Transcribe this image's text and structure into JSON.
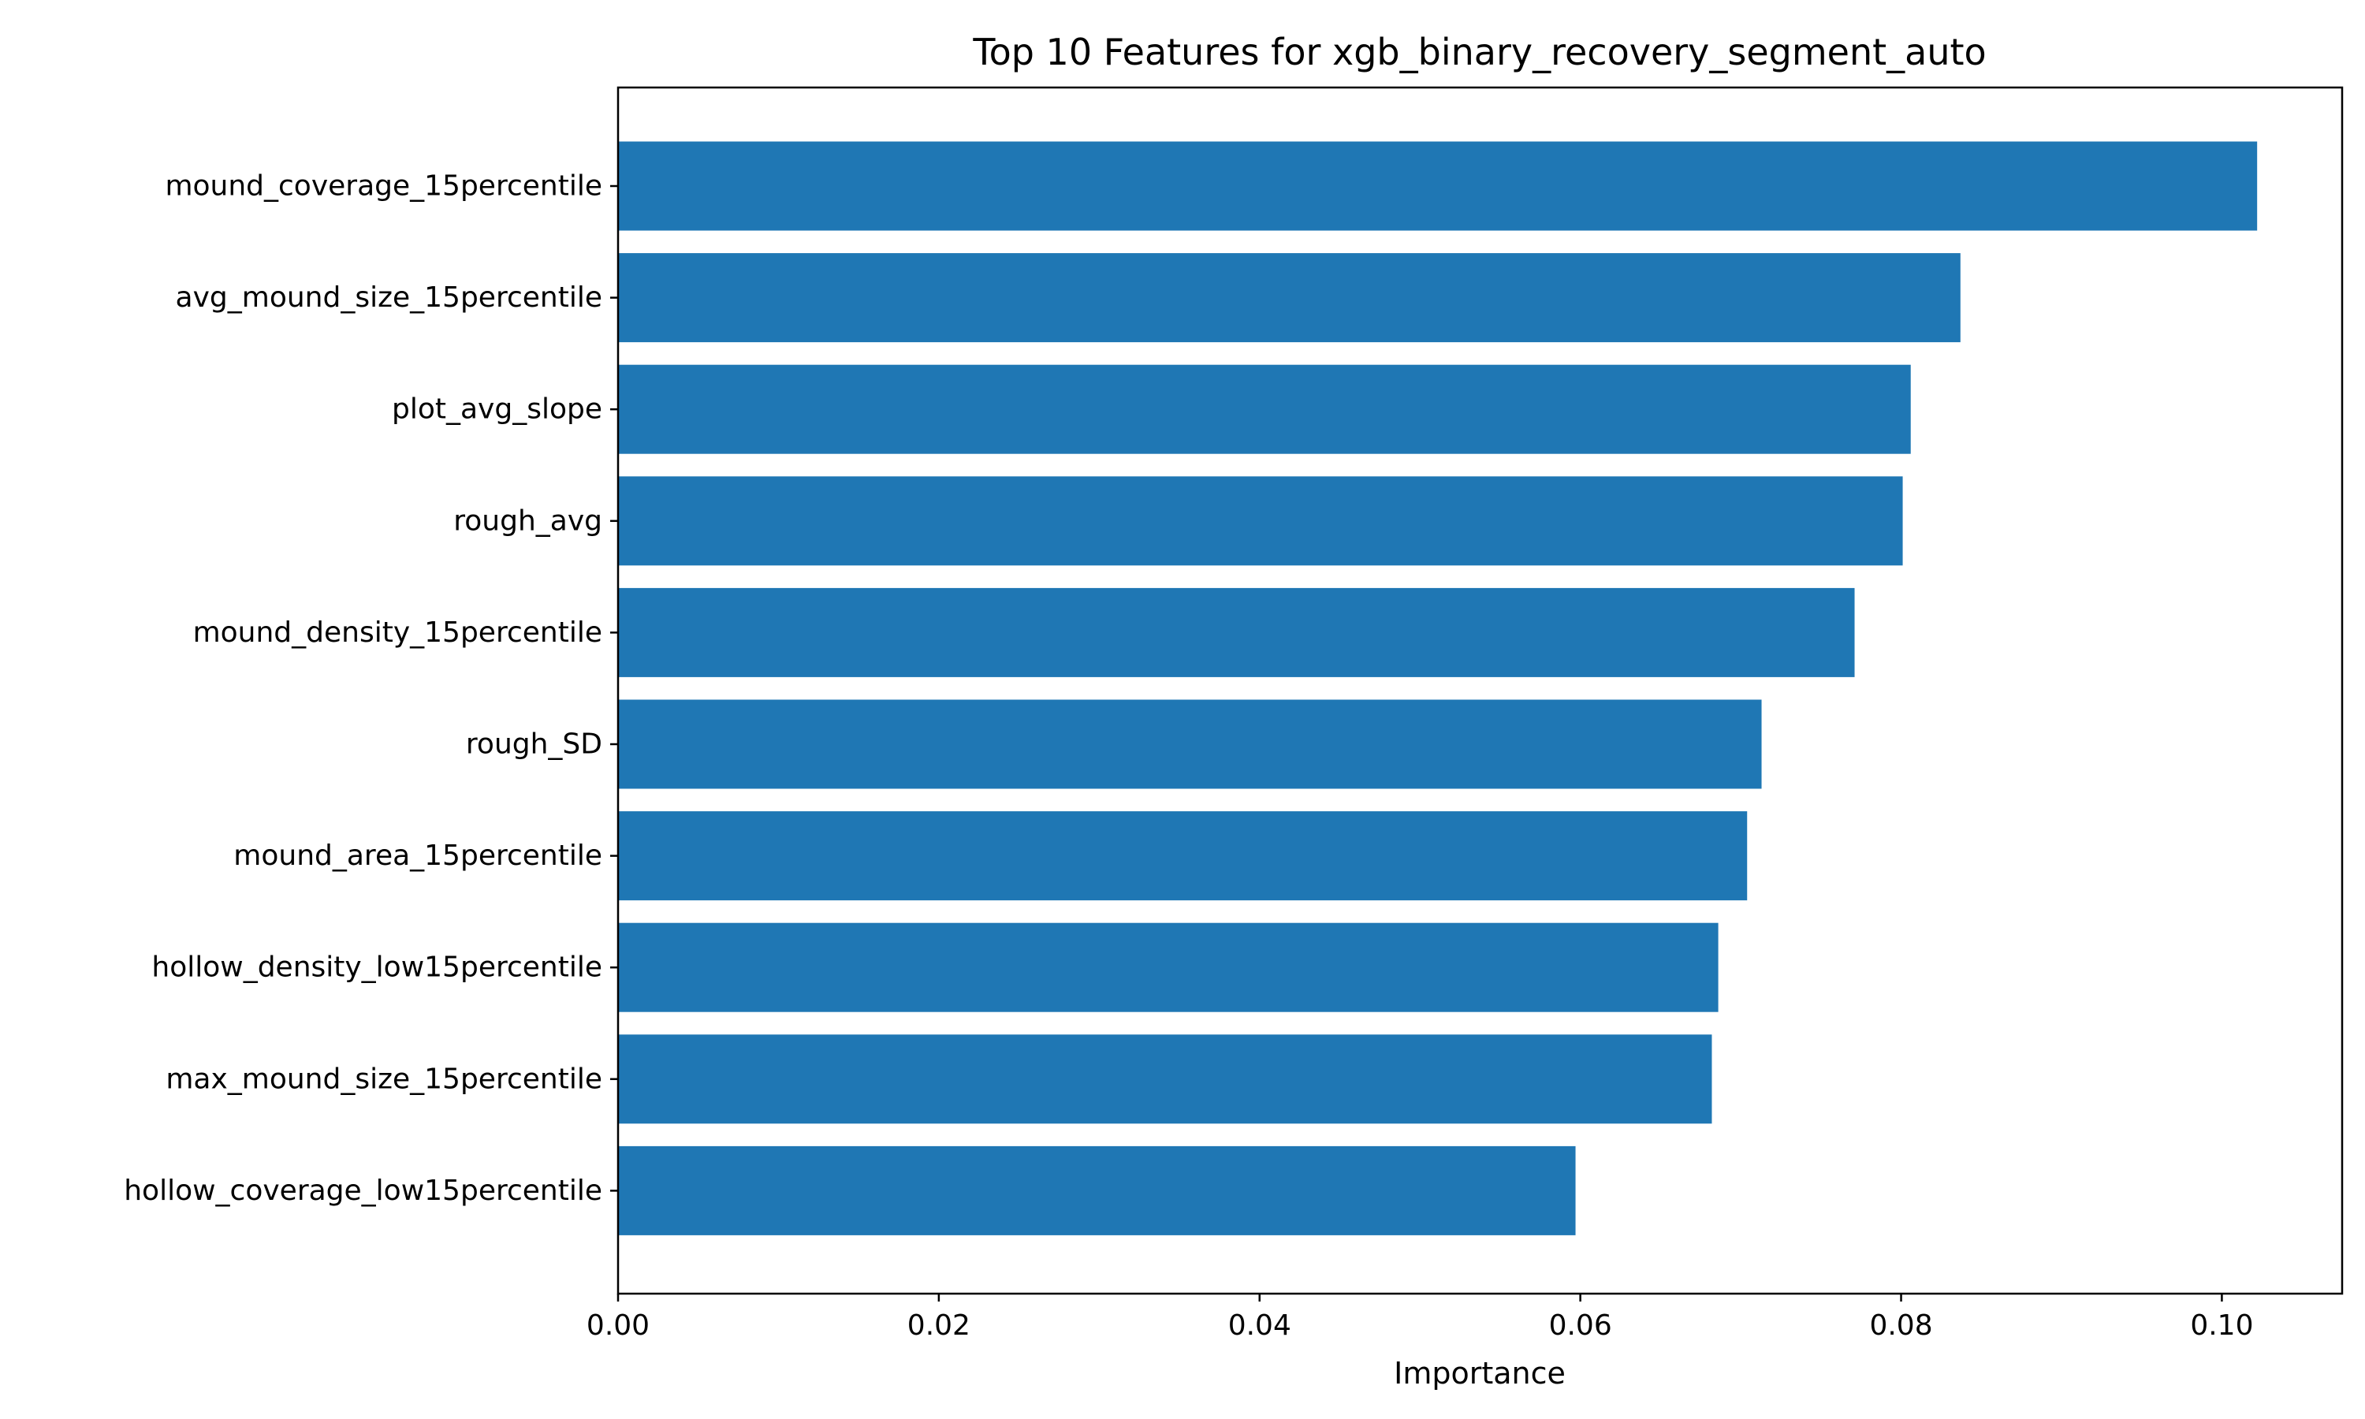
{
  "chart_data": {
    "type": "bar",
    "orientation": "horizontal",
    "title": "Top 10 Features for xgb_binary_recovery_segment_auto",
    "xlabel": "Importance",
    "ylabel": "",
    "xlim": [
      0,
      0.1075
    ],
    "xticks": [
      "0.00",
      "0.02",
      "0.04",
      "0.06",
      "0.08",
      "0.10"
    ],
    "xtick_values": [
      0,
      0.02,
      0.04,
      0.06,
      0.08,
      0.1
    ],
    "grid": false,
    "legend": "none",
    "bar_color": "#1f77b4",
    "categories": [
      "mound_coverage_15percentile",
      "avg_mound_size_15percentile",
      "plot_avg_slope",
      "rough_avg",
      "mound_density_15percentile",
      "rough_SD",
      "mound_area_15percentile",
      "hollow_density_low15percentile",
      "max_mound_size_15percentile",
      "hollow_coverage_low15percentile"
    ],
    "values": [
      0.1022,
      0.0837,
      0.0806,
      0.0801,
      0.0771,
      0.0713,
      0.0704,
      0.0686,
      0.0682,
      0.0597
    ]
  }
}
